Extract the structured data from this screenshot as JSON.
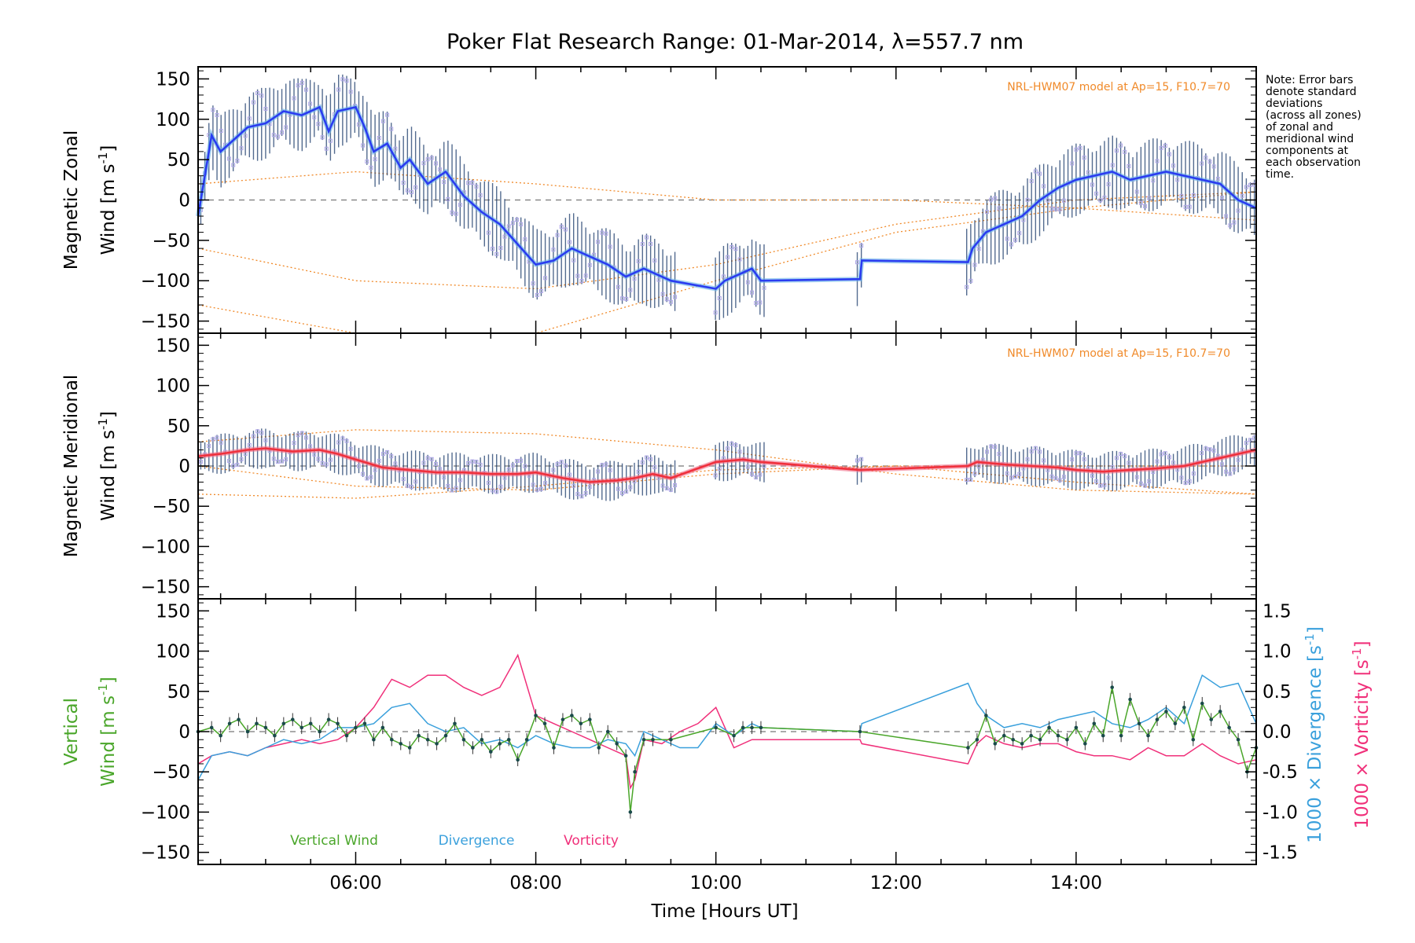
{
  "title": "Poker Flat Research Range: 01-Mar-2014, λ=557.7 nm",
  "note": [
    "Note: Error bars",
    "denote standard",
    "deviations",
    "(across all zones)",
    "of zonal and",
    "meridional wind",
    "components at",
    "each observation",
    "time."
  ],
  "colors": {
    "zonal": "#2a3cf0",
    "zonal_light": "#6ab4e8",
    "meridional": "#f0303c",
    "meridional_light": "#f0708a",
    "model": "#f08a2a",
    "vertical": "#4aa62a",
    "divergence": "#3aa0dc",
    "vorticity": "#f0307a",
    "errorbar": "#1a3a6a",
    "scatter": "#b0a8e8"
  },
  "chart_data": [
    {
      "type": "line",
      "panel": "zonal",
      "ylabel_line1": "Magnetic Zonal",
      "ylabel_line2": "Wind [m s",
      "ylabel_sup": "-1",
      "ylabel_end": "]",
      "model_label": "NRL-HWM07 model at Ap=15, F10.7=70",
      "ylim": [
        -165,
        165
      ],
      "yticks": [
        150,
        100,
        50,
        0,
        -50,
        -100,
        -150
      ],
      "xlim": [
        4.25,
        16.0
      ],
      "series": [
        {
          "x": [
            4.25,
            4.4,
            4.5,
            4.65,
            4.8,
            5.0,
            5.2,
            5.4,
            5.6,
            5.7,
            5.8,
            6.0,
            6.1,
            6.2,
            6.35,
            6.5,
            6.6,
            6.8,
            7.0,
            7.2,
            7.4,
            7.6,
            7.8,
            8.0,
            8.2,
            8.4,
            8.6,
            8.8,
            9.0,
            9.2,
            9.4,
            9.5,
            10.0,
            10.1,
            10.3,
            10.4,
            10.5,
            11.6,
            11.62,
            12.8,
            12.85,
            13.0,
            13.2,
            13.4,
            13.6,
            13.8,
            14.0,
            14.2,
            14.4,
            14.6,
            14.8,
            15.0,
            15.2,
            15.4,
            15.6,
            15.8,
            16.0
          ],
          "y": [
            -20,
            80,
            60,
            75,
            90,
            95,
            110,
            105,
            115,
            85,
            110,
            115,
            90,
            60,
            70,
            40,
            50,
            20,
            35,
            5,
            -15,
            -30,
            -55,
            -80,
            -75,
            -60,
            -70,
            -80,
            -95,
            -85,
            -95,
            -100,
            -110,
            -100,
            -90,
            -85,
            -100,
            -98,
            -75,
            -77,
            -60,
            -40,
            -30,
            -20,
            0,
            15,
            25,
            30,
            35,
            25,
            30,
            35,
            30,
            25,
            20,
            0,
            -10
          ]
        }
      ],
      "model_curves": [
        {
          "x": [
            4.25,
            6,
            8,
            10,
            12,
            14,
            16
          ],
          "y": [
            20,
            35,
            20,
            0,
            0,
            -10,
            -25
          ]
        },
        {
          "x": [
            4.25,
            6,
            8,
            10,
            12,
            14,
            16
          ],
          "y": [
            -60,
            -100,
            -110,
            -80,
            -30,
            0,
            10
          ]
        },
        {
          "x": [
            4.25,
            6,
            8,
            10,
            12,
            14,
            16
          ],
          "y": [
            -130,
            -165,
            -165,
            -100,
            -40,
            -10,
            10
          ]
        }
      ]
    },
    {
      "type": "line",
      "panel": "meridional",
      "ylabel_line1": "Magnetic Meridional",
      "ylabel_line2": "Wind [m s",
      "ylabel_sup": "-1",
      "ylabel_end": "]",
      "model_label": "NRL-HWM07 model at Ap=15, F10.7=70",
      "ylim": [
        -165,
        165
      ],
      "yticks": [
        150,
        100,
        50,
        0,
        -50,
        -100,
        -150
      ],
      "xlim": [
        4.25,
        16.0
      ],
      "series": [
        {
          "x": [
            4.25,
            4.5,
            4.8,
            5.0,
            5.3,
            5.6,
            5.8,
            6.0,
            6.3,
            6.6,
            6.9,
            7.2,
            7.5,
            7.8,
            8.0,
            8.3,
            8.6,
            8.9,
            9.1,
            9.3,
            9.5,
            10.0,
            10.3,
            10.5,
            11.6,
            12.8,
            12.9,
            13.2,
            13.5,
            13.8,
            14.0,
            14.3,
            14.6,
            14.9,
            15.2,
            15.4,
            15.6,
            15.8,
            16.0
          ],
          "y": [
            12,
            15,
            20,
            22,
            18,
            20,
            15,
            8,
            -2,
            -5,
            -8,
            -8,
            -10,
            -10,
            -8,
            -15,
            -20,
            -18,
            -15,
            -10,
            -15,
            5,
            8,
            5,
            -5,
            0,
            5,
            2,
            0,
            -2,
            -5,
            -7,
            -5,
            -3,
            0,
            5,
            10,
            15,
            20
          ]
        }
      ],
      "model_curves": [
        {
          "x": [
            4.25,
            6,
            8,
            10,
            12,
            14,
            16
          ],
          "y": [
            30,
            45,
            40,
            20,
            -10,
            -30,
            -35
          ]
        },
        {
          "x": [
            4.25,
            6,
            8,
            10,
            12,
            14,
            16
          ],
          "y": [
            0,
            -25,
            -30,
            -10,
            0,
            0,
            0
          ]
        },
        {
          "x": [
            4.25,
            6,
            8,
            10,
            12,
            14,
            16
          ],
          "y": [
            -35,
            -40,
            -25,
            -5,
            0,
            -20,
            -35
          ]
        }
      ]
    },
    {
      "type": "line",
      "panel": "vertical",
      "ylabel_line1": "Vertical",
      "ylabel_line2": "Wind [m s",
      "ylabel_sup": "-1",
      "ylabel_end": "]",
      "right_label_div": "1000 × Divergence [s",
      "right_label_vor": "1000 × Vorticity [s",
      "right_sup": "-1",
      "right_end": "]",
      "ylim": [
        -165,
        165
      ],
      "yticks": [
        150,
        100,
        50,
        0,
        -50,
        -100,
        -150
      ],
      "y2lim": [
        -1.65,
        1.65
      ],
      "y2ticks": [
        1.5,
        1.0,
        0.5,
        0.0,
        -0.5,
        -1.0,
        -1.5
      ],
      "y2ticklabels": [
        "1.5",
        "1.0",
        "0.5",
        "0.0",
        "-0.5",
        "-1.0",
        "-1.5"
      ],
      "xlim": [
        4.25,
        16.0
      ],
      "xticks": [
        6,
        8,
        10,
        12,
        14
      ],
      "xticklabels": [
        "06:00",
        "08:00",
        "10:00",
        "12:00",
        "14:00"
      ],
      "xlabel": "Time [Hours UT]",
      "legend": [
        "Vertical Wind",
        "Divergence",
        "Vorticity"
      ],
      "series": [
        {
          "name": "Vertical Wind",
          "x": [
            4.25,
            4.4,
            4.5,
            4.6,
            4.7,
            4.8,
            4.9,
            5.0,
            5.1,
            5.2,
            5.3,
            5.4,
            5.5,
            5.6,
            5.7,
            5.8,
            5.9,
            6.0,
            6.1,
            6.2,
            6.3,
            6.4,
            6.5,
            6.6,
            6.7,
            6.8,
            6.9,
            7.0,
            7.1,
            7.2,
            7.3,
            7.4,
            7.5,
            7.6,
            7.7,
            7.8,
            7.9,
            8.0,
            8.1,
            8.2,
            8.3,
            8.4,
            8.5,
            8.6,
            8.7,
            8.8,
            8.9,
            9.0,
            9.05,
            9.1,
            9.2,
            9.3,
            9.5,
            10.0,
            10.2,
            10.3,
            10.4,
            10.5,
            11.6,
            12.8,
            12.9,
            13.0,
            13.1,
            13.2,
            13.3,
            13.4,
            13.5,
            13.6,
            13.7,
            13.8,
            13.9,
            14.0,
            14.1,
            14.2,
            14.3,
            14.4,
            14.5,
            14.6,
            14.7,
            14.8,
            14.9,
            15.0,
            15.1,
            15.2,
            15.3,
            15.4,
            15.5,
            15.6,
            15.7,
            15.8,
            15.9,
            16.0
          ],
          "y": [
            0,
            5,
            -5,
            10,
            15,
            0,
            10,
            5,
            -5,
            10,
            15,
            5,
            10,
            0,
            15,
            10,
            -5,
            5,
            10,
            -10,
            5,
            -10,
            -15,
            -20,
            -5,
            -10,
            -15,
            -5,
            10,
            -10,
            -20,
            -10,
            -25,
            -15,
            -10,
            -35,
            -10,
            20,
            10,
            -20,
            15,
            20,
            10,
            15,
            -20,
            0,
            -15,
            -30,
            -100,
            -50,
            -10,
            -10,
            -10,
            5,
            -5,
            5,
            5,
            5,
            0,
            -20,
            -10,
            20,
            -15,
            -5,
            -10,
            -15,
            -5,
            -10,
            5,
            -5,
            -10,
            5,
            -15,
            10,
            -5,
            55,
            -5,
            40,
            10,
            -5,
            15,
            25,
            10,
            30,
            -10,
            35,
            15,
            25,
            5,
            -10,
            -50,
            -20
          ]
        },
        {
          "name": "Divergence",
          "x": [
            4.25,
            4.4,
            4.6,
            4.8,
            5.0,
            5.2,
            5.4,
            5.6,
            5.8,
            6.0,
            6.2,
            6.4,
            6.6,
            6.8,
            7.0,
            7.2,
            7.4,
            7.6,
            7.8,
            8.0,
            8.2,
            8.4,
            8.6,
            8.8,
            9.0,
            9.1,
            9.2,
            9.4,
            9.6,
            9.8,
            10.0,
            10.2,
            10.4,
            10.5,
            11.6,
            11.62,
            12.8,
            12.9,
            13.0,
            13.2,
            13.4,
            13.6,
            13.8,
            14.0,
            14.2,
            14.4,
            14.6,
            14.8,
            15.0,
            15.2,
            15.4,
            15.6,
            15.8,
            16.0
          ],
          "y": [
            -0.6,
            -0.3,
            -0.25,
            -0.3,
            -0.2,
            -0.1,
            -0.15,
            -0.1,
            0.05,
            0.05,
            0.1,
            0.3,
            0.35,
            0.1,
            0.0,
            0.05,
            -0.15,
            -0.1,
            -0.2,
            -0.05,
            -0.15,
            -0.2,
            -0.2,
            -0.1,
            -0.15,
            -0.3,
            0.0,
            -0.1,
            -0.2,
            -0.2,
            0.1,
            -0.05,
            0.1,
            0.05,
            0.0,
            0.1,
            0.6,
            0.35,
            0.2,
            0.05,
            0.1,
            0.05,
            0.15,
            0.2,
            0.25,
            0.1,
            0.05,
            0.15,
            0.3,
            0.1,
            0.7,
            0.55,
            0.6,
            0.1
          ]
        },
        {
          "name": "Vorticity",
          "x": [
            4.25,
            4.4,
            4.6,
            4.8,
            5.0,
            5.2,
            5.4,
            5.6,
            5.8,
            6.0,
            6.2,
            6.4,
            6.6,
            6.8,
            7.0,
            7.2,
            7.4,
            7.6,
            7.8,
            8.0,
            8.2,
            8.4,
            8.6,
            8.8,
            9.0,
            9.05,
            9.1,
            9.2,
            9.4,
            9.6,
            9.8,
            10.0,
            10.2,
            10.4,
            11.6,
            11.62,
            12.8,
            12.9,
            13.0,
            13.2,
            13.4,
            13.6,
            13.8,
            14.0,
            14.2,
            14.4,
            14.6,
            14.8,
            15.0,
            15.2,
            15.4,
            15.6,
            15.8,
            16.0
          ],
          "y": [
            -0.4,
            -0.3,
            -0.25,
            -0.3,
            -0.2,
            -0.15,
            -0.1,
            -0.15,
            -0.1,
            0.05,
            0.3,
            0.65,
            0.55,
            0.7,
            0.7,
            0.55,
            0.45,
            0.55,
            0.95,
            0.2,
            0.1,
            0.0,
            -0.1,
            -0.2,
            -0.3,
            -0.7,
            -0.6,
            -0.1,
            -0.15,
            0.0,
            0.1,
            0.3,
            -0.2,
            -0.1,
            -0.1,
            -0.15,
            -0.4,
            -0.15,
            -0.05,
            -0.15,
            -0.2,
            -0.15,
            -0.15,
            -0.25,
            -0.3,
            -0.3,
            -0.35,
            -0.2,
            -0.3,
            -0.3,
            -0.15,
            -0.3,
            -0.4,
            -0.35
          ]
        }
      ]
    }
  ]
}
